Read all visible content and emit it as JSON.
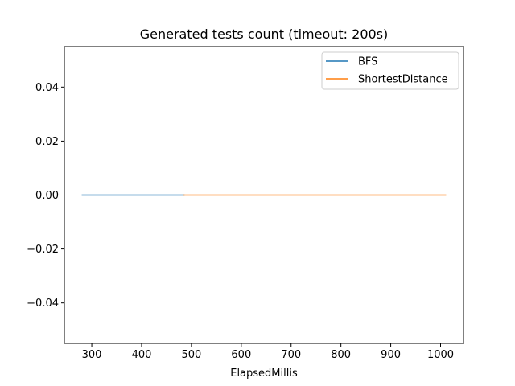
{
  "chart_data": {
    "type": "line",
    "title": "Generated tests count (timeout: 200s)",
    "xlabel": "ElapsedMillis",
    "ylabel": "",
    "xlim": [
      245,
      1046
    ],
    "ylim": [
      -0.055,
      0.055
    ],
    "x_ticks": [
      300,
      400,
      500,
      600,
      700,
      800,
      900,
      1000
    ],
    "x_tick_labels": [
      "300",
      "400",
      "500",
      "600",
      "700",
      "800",
      "900",
      "1000"
    ],
    "y_ticks": [
      -0.04,
      -0.02,
      0.0,
      0.02,
      0.04
    ],
    "y_tick_labels": [
      "−0.04",
      "−0.02",
      "0.00",
      "0.02",
      "0.04"
    ],
    "grid": false,
    "legend_position": "upper right",
    "series": [
      {
        "name": "BFS",
        "color": "#1f77b4",
        "x": [
          281,
          485
        ],
        "y": [
          0,
          0
        ]
      },
      {
        "name": "ShortestDistance",
        "color": "#ff7f0e",
        "x": [
          485,
          1010
        ],
        "y": [
          0,
          0
        ]
      }
    ]
  }
}
